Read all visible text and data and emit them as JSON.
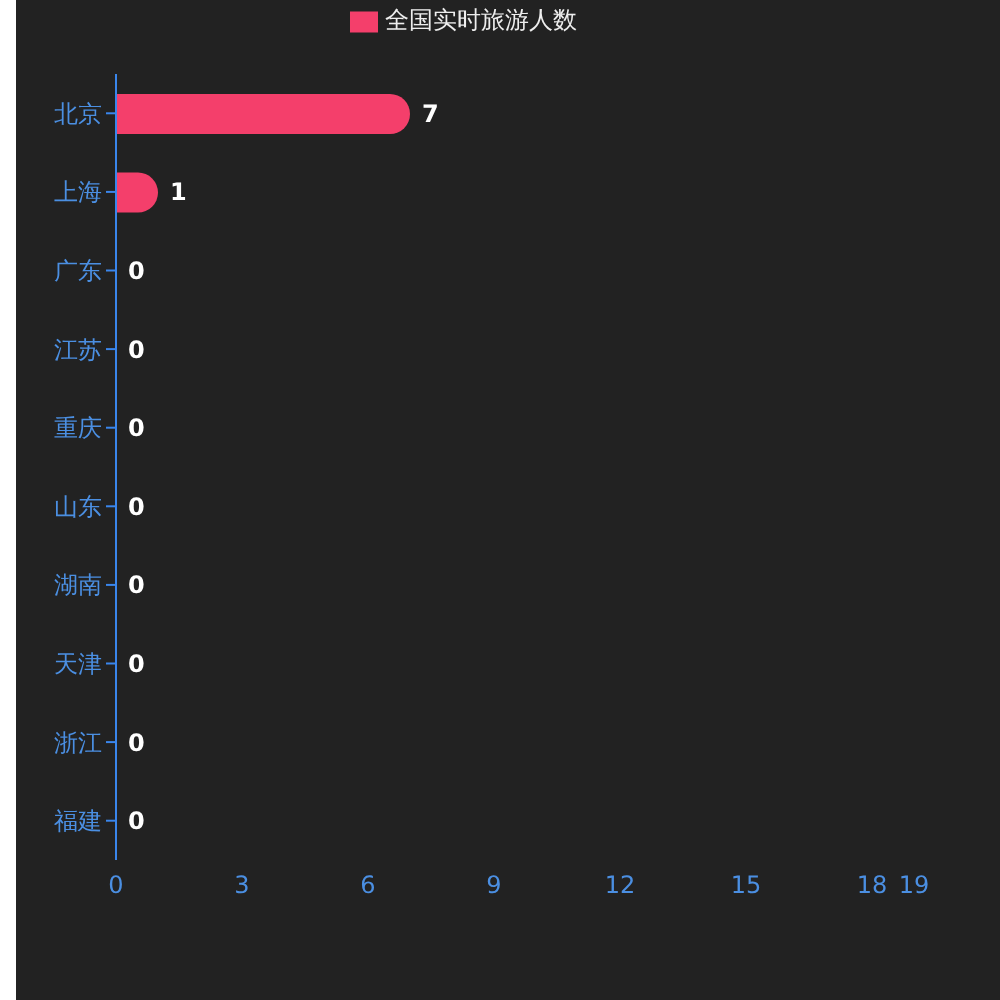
{
  "chart_data": {
    "type": "bar",
    "orientation": "horizontal",
    "categories": [
      "北京",
      "上海",
      "广东",
      "江苏",
      "重庆",
      "山东",
      "湖南",
      "天津",
      "浙江",
      "福建"
    ],
    "series": [
      {
        "name": "全国实时旅游人数",
        "color": "#f43f6b",
        "values": [
          7,
          1,
          0,
          0,
          0,
          0,
          0,
          0,
          0,
          0
        ]
      }
    ],
    "xlim": [
      0,
      19
    ],
    "xticks": [
      0,
      3,
      6,
      9,
      12,
      15,
      18,
      19
    ],
    "data_labels": true,
    "legend": "top"
  }
}
